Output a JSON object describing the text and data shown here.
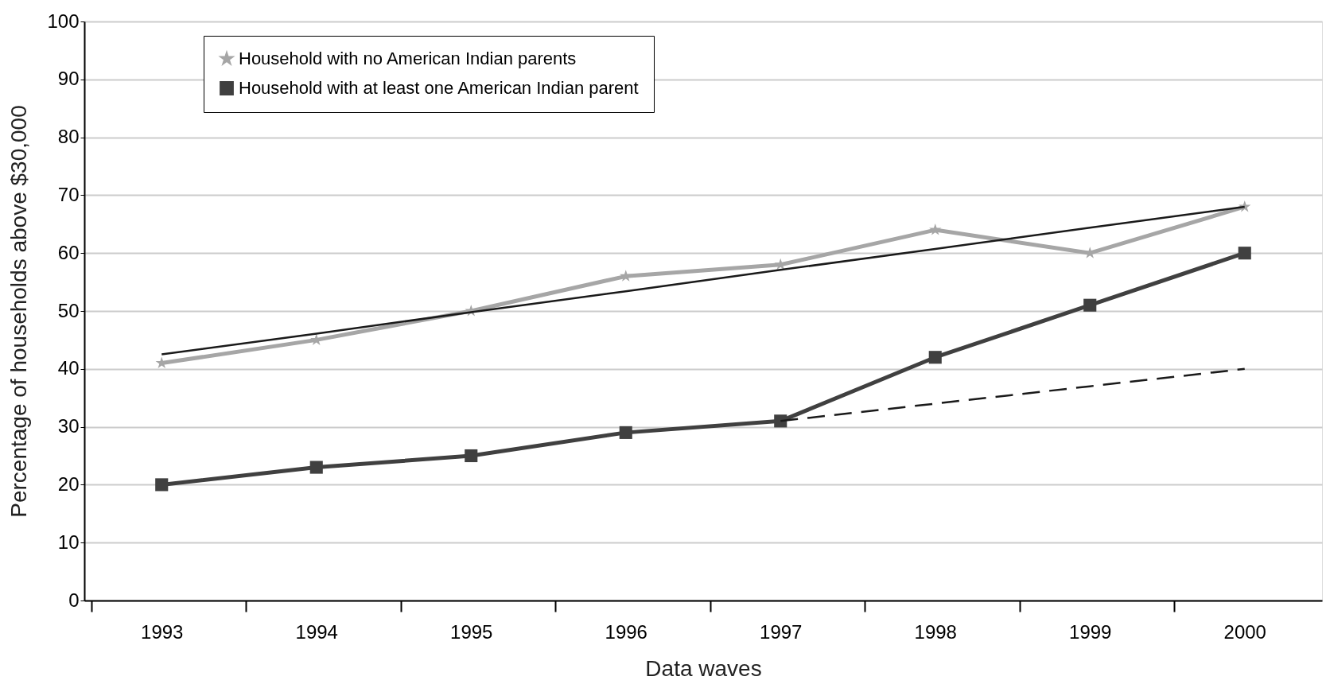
{
  "chart_data": {
    "type": "line",
    "xlabel": "Data waves",
    "ylabel": "Percentage of households above $30,000",
    "categories": [
      "1993",
      "1994",
      "1995",
      "1996",
      "1997",
      "1998",
      "1999",
      "2000"
    ],
    "series": [
      {
        "name": "Household with no American Indian parents",
        "color": "#a6a6a6",
        "marker": "star",
        "values": [
          41,
          45,
          50,
          56,
          58,
          64,
          60,
          68
        ]
      },
      {
        "name": "Household with at least one American Indian parent",
        "color": "#404040",
        "marker": "square",
        "values": [
          20,
          23,
          25,
          29,
          31,
          42,
          51,
          60
        ]
      },
      {
        "type": "line",
        "color": "#1a1a1a",
        "values": [
          42.5,
          46.1,
          49.8,
          53.4,
          57.1,
          60.7,
          64.4,
          68
        ]
      },
      {
        "type": "line",
        "color": "#1a1a1a",
        "line_style": "dashed",
        "values": [
          null,
          null,
          null,
          null,
          31,
          34,
          37,
          40
        ]
      }
    ],
    "ylim": [
      0,
      100
    ],
    "yticks": [
      0,
      10,
      20,
      30,
      40,
      50,
      60,
      70,
      80,
      90,
      100
    ],
    "grid": "y",
    "legend": "top left"
  }
}
